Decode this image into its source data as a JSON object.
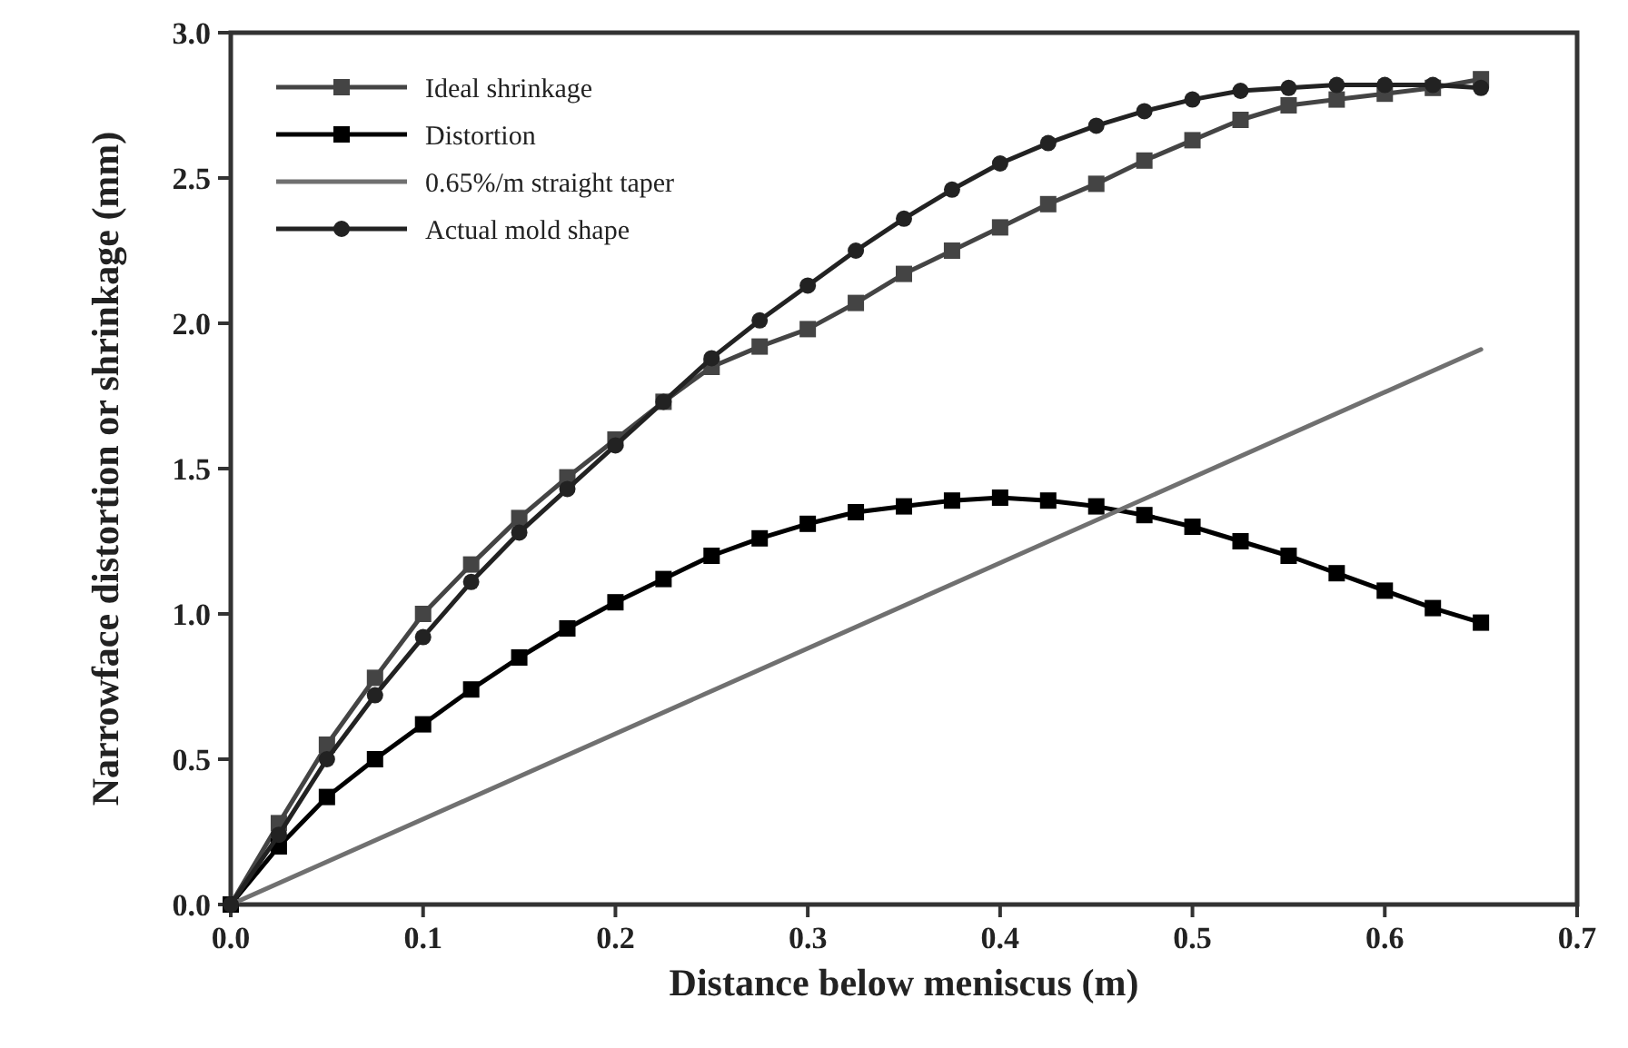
{
  "chart_data": {
    "type": "line",
    "xlabel": "Distance below meniscus (m)",
    "ylabel": "Narrowface distortion or shrinkage (mm)",
    "x": [
      0,
      0.025,
      0.05,
      0.075,
      0.1,
      0.125,
      0.15,
      0.175,
      0.2,
      0.225,
      0.25,
      0.275,
      0.3,
      0.325,
      0.35,
      0.375,
      0.4,
      0.425,
      0.45,
      0.475,
      0.5,
      0.525,
      0.55,
      0.575,
      0.6,
      0.625,
      0.65
    ],
    "series": [
      {
        "name": "Ideal shrinkage",
        "color": "#444444",
        "marker": "square",
        "values": [
          0,
          0.28,
          0.55,
          0.78,
          1.0,
          1.17,
          1.33,
          1.47,
          1.6,
          1.73,
          1.85,
          1.92,
          1.98,
          2.07,
          2.17,
          2.25,
          2.33,
          2.41,
          2.48,
          2.56,
          2.63,
          2.7,
          2.75,
          2.77,
          2.79,
          2.81,
          2.84
        ]
      },
      {
        "name": "Distortion",
        "color": "#000000",
        "marker": "square",
        "values": [
          0,
          0.2,
          0.37,
          0.5,
          0.62,
          0.74,
          0.85,
          0.95,
          1.04,
          1.12,
          1.2,
          1.26,
          1.31,
          1.35,
          1.37,
          1.39,
          1.4,
          1.39,
          1.37,
          1.34,
          1.3,
          1.25,
          1.2,
          1.14,
          1.08,
          1.02,
          0.97
        ]
      },
      {
        "name": "0.65%/m straight taper",
        "color": "#707070",
        "marker": "none",
        "x": [
          0,
          0.65
        ],
        "values": [
          0,
          1.91
        ]
      },
      {
        "name": "Actual mold shape",
        "color": "#222222",
        "marker": "circle",
        "values": [
          0,
          0.24,
          0.5,
          0.72,
          0.92,
          1.11,
          1.28,
          1.43,
          1.58,
          1.73,
          1.88,
          2.01,
          2.13,
          2.25,
          2.36,
          2.46,
          2.55,
          2.62,
          2.68,
          2.73,
          2.77,
          2.8,
          2.81,
          2.82,
          2.82,
          2.82,
          2.81
        ]
      }
    ],
    "xlim": [
      0,
      0.7
    ],
    "ylim": [
      0,
      3
    ],
    "xticks": [
      {
        "value": 0,
        "label": "0.0"
      },
      0.1,
      0.2,
      0.3,
      0.4,
      0.5,
      0.6,
      0.7
    ],
    "yticks": [
      {
        "value": 0,
        "label": "0.0"
      },
      0.5,
      {
        "value": 1,
        "label": "1.0"
      },
      1.5,
      {
        "value": 2,
        "label": "2.0"
      },
      2.5,
      {
        "value": 3,
        "label": "3.0"
      }
    ],
    "grid": false,
    "legend": "top left"
  }
}
